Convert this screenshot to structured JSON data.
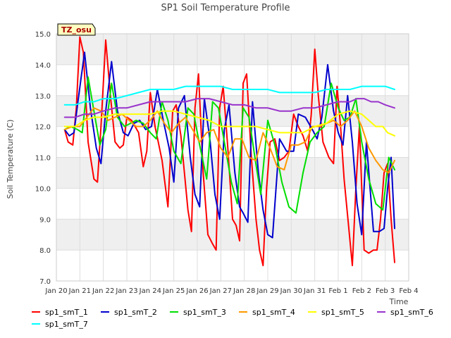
{
  "chart_data": {
    "type": "line",
    "title": "SP1 Soil Temperature Profile",
    "xlabel": "Time",
    "ylabel": "Soil Temperature (C)",
    "badge": "TZ_osu",
    "ylim": [
      7.0,
      15.0
    ],
    "xlim": [
      0,
      15
    ],
    "grid": true,
    "legend_position": "bottom",
    "y_ticks": [
      "7.0",
      "8.0",
      "9.0",
      "10.0",
      "11.0",
      "12.0",
      "13.0",
      "14.0",
      "15.0"
    ],
    "x_ticks": [
      "Jan 20",
      "Jan 21",
      "Jan 22",
      "Jan 23",
      "Jan 24",
      "Jan 25",
      "Jan 26",
      "Jan 27",
      "Jan 28",
      "Jan 29",
      "Jan 30",
      "Jan 31",
      "Feb 1",
      "Feb 2",
      "Feb 3",
      "Feb 4"
    ],
    "x_tick_positions": [
      0,
      1,
      2,
      3,
      4,
      5,
      6,
      7,
      8,
      9,
      10,
      11,
      12,
      13,
      14,
      15
    ],
    "series": [
      {
        "name": "sp1_smT_1",
        "color": "#ff0000",
        "x": [
          0.35,
          0.5,
          0.7,
          0.85,
          1.0,
          1.15,
          1.35,
          1.6,
          1.75,
          1.9,
          2.1,
          2.3,
          2.5,
          2.7,
          2.85,
          3.0,
          3.2,
          3.5,
          3.7,
          3.85,
          4.0,
          4.2,
          4.5,
          4.75,
          4.95,
          5.1,
          5.3,
          5.45,
          5.6,
          5.75,
          5.9,
          6.05,
          6.25,
          6.45,
          6.65,
          6.8,
          6.95,
          7.1,
          7.3,
          7.5,
          7.65,
          7.8,
          7.95,
          8.1,
          8.3,
          8.5,
          8.65,
          8.8,
          8.95,
          9.1,
          9.3,
          9.5,
          9.7,
          9.9,
          10.1,
          10.3,
          10.5,
          10.7,
          10.85,
          11.0,
          11.15,
          11.35,
          11.6,
          11.8,
          11.95,
          12.1,
          12.25,
          12.45,
          12.6,
          12.75,
          12.9,
          13.1,
          13.3,
          13.5,
          13.65,
          13.8,
          13.95,
          14.1,
          14.25,
          14.4
        ],
        "y": [
          11.9,
          11.5,
          11.4,
          12.6,
          14.9,
          14.4,
          11.5,
          10.3,
          10.2,
          12.0,
          14.8,
          13.0,
          11.5,
          11.3,
          11.4,
          12.3,
          12.2,
          11.8,
          10.7,
          11.2,
          13.1,
          12.0,
          10.9,
          9.4,
          12.5,
          12.7,
          11.7,
          10.5,
          9.3,
          8.6,
          12.6,
          13.7,
          10.5,
          8.5,
          8.2,
          8.0,
          12.6,
          13.3,
          11.3,
          9.0,
          8.8,
          8.3,
          13.4,
          13.7,
          11.0,
          9.0,
          8.0,
          7.5,
          10.0,
          11.5,
          11.6,
          10.9,
          11.0,
          11.2,
          12.4,
          12.0,
          11.7,
          11.2,
          12.4,
          14.5,
          13.0,
          11.5,
          11.0,
          10.8,
          13.3,
          12.0,
          10.3,
          8.7,
          7.5,
          10.0,
          12.0,
          8.0,
          7.9,
          8.0,
          8.0,
          9.0,
          10.5,
          10.8,
          9.0,
          7.6
        ]
      },
      {
        "name": "sp1_smT_2",
        "color": "#0000cc",
        "x": [
          0.35,
          0.55,
          0.75,
          0.95,
          1.2,
          1.45,
          1.7,
          1.9,
          2.1,
          2.35,
          2.6,
          2.85,
          3.05,
          3.3,
          3.55,
          3.8,
          4.05,
          4.3,
          4.55,
          4.8,
          5.0,
          5.2,
          5.45,
          5.7,
          5.9,
          6.1,
          6.3,
          6.55,
          6.75,
          6.95,
          7.15,
          7.35,
          7.6,
          7.8,
          7.95,
          8.15,
          8.35,
          8.6,
          8.8,
          9.0,
          9.2,
          9.5,
          9.8,
          10.1,
          10.3,
          10.6,
          10.9,
          11.1,
          11.3,
          11.55,
          11.8,
          12.0,
          12.2,
          12.4,
          12.6,
          12.8,
          13.0,
          13.2,
          13.5,
          13.75,
          13.95,
          14.1,
          14.25,
          14.4
        ],
        "y": [
          11.9,
          11.7,
          11.8,
          13.0,
          14.4,
          12.6,
          11.3,
          10.8,
          12.5,
          14.1,
          12.5,
          11.8,
          11.7,
          12.1,
          12.2,
          11.9,
          12.0,
          13.2,
          12.2,
          11.3,
          10.2,
          12.6,
          13.0,
          11.0,
          9.8,
          9.4,
          12.9,
          11.5,
          9.8,
          9.0,
          11.9,
          12.7,
          10.5,
          9.4,
          9.2,
          8.9,
          12.8,
          10.5,
          9.3,
          8.5,
          8.4,
          11.6,
          11.2,
          11.2,
          12.4,
          12.3,
          11.9,
          11.6,
          12.3,
          14.0,
          12.5,
          11.8,
          11.4,
          13.0,
          11.5,
          9.5,
          8.5,
          11.5,
          8.6,
          8.6,
          8.7,
          10.0,
          11.0,
          8.7
        ]
      },
      {
        "name": "sp1_smT_3",
        "color": "#00dd00",
        "x": [
          0.35,
          0.6,
          0.9,
          1.1,
          1.35,
          1.6,
          1.85,
          2.1,
          2.35,
          2.6,
          2.9,
          3.15,
          3.4,
          3.7,
          4.0,
          4.25,
          4.5,
          4.75,
          5.0,
          5.3,
          5.6,
          5.85,
          6.1,
          6.4,
          6.65,
          6.9,
          7.15,
          7.45,
          7.7,
          7.95,
          8.2,
          8.45,
          8.7,
          9.0,
          9.3,
          9.6,
          9.9,
          10.2,
          10.5,
          10.8,
          11.1,
          11.4,
          11.7,
          12.0,
          12.25,
          12.5,
          12.75,
          13.0,
          13.3,
          13.6,
          13.9,
          14.15,
          14.4
        ],
        "y": [
          11.9,
          12.0,
          11.9,
          11.8,
          13.6,
          12.5,
          11.4,
          11.9,
          13.4,
          12.3,
          12.0,
          12.1,
          12.2,
          12.1,
          11.8,
          11.6,
          12.8,
          12.2,
          11.2,
          10.8,
          12.6,
          12.4,
          11.4,
          10.3,
          12.8,
          12.6,
          11.5,
          10.2,
          9.5,
          12.6,
          12.3,
          11.0,
          9.8,
          12.2,
          11.4,
          10.2,
          9.4,
          9.2,
          10.5,
          11.5,
          11.8,
          12.0,
          13.4,
          12.6,
          12.2,
          12.3,
          12.9,
          11.5,
          10.3,
          9.5,
          9.3,
          11.0,
          10.6
        ]
      },
      {
        "name": "sp1_smT_4",
        "color": "#ff9900",
        "x": [
          0.35,
          0.7,
          1.0,
          1.3,
          1.6,
          1.9,
          2.2,
          2.5,
          2.8,
          3.1,
          3.4,
          3.7,
          4.0,
          4.3,
          4.6,
          4.9,
          5.2,
          5.5,
          5.8,
          6.1,
          6.4,
          6.7,
          7.0,
          7.3,
          7.6,
          7.9,
          8.2,
          8.5,
          8.8,
          9.1,
          9.4,
          9.7,
          10.0,
          10.3,
          10.6,
          10.9,
          11.2,
          11.5,
          11.8,
          12.1,
          12.4,
          12.7,
          13.0,
          13.3,
          13.6,
          13.9,
          14.15,
          14.4
        ],
        "y": [
          11.9,
          12.0,
          12.0,
          12.3,
          12.6,
          12.5,
          12.2,
          12.3,
          12.4,
          12.2,
          12.0,
          12.0,
          12.2,
          12.5,
          12.1,
          11.8,
          12.1,
          12.3,
          11.9,
          11.5,
          11.8,
          11.9,
          11.3,
          11.0,
          11.6,
          11.6,
          11.0,
          10.9,
          11.8,
          11.3,
          10.7,
          10.6,
          11.4,
          11.4,
          11.5,
          12.0,
          12.0,
          12.1,
          12.2,
          12.0,
          12.2,
          12.5,
          12.0,
          11.3,
          10.9,
          10.6,
          10.5,
          10.9
        ]
      },
      {
        "name": "sp1_smT_5",
        "color": "#ffff00",
        "x": [
          0.35,
          0.8,
          1.2,
          1.6,
          2.0,
          2.5,
          3.0,
          3.5,
          4.0,
          4.5,
          5.0,
          5.5,
          6.0,
          6.5,
          7.0,
          7.5,
          8.0,
          8.5,
          9.0,
          9.5,
          10.0,
          10.5,
          11.0,
          11.5,
          12.0,
          12.5,
          13.0,
          13.3,
          13.6,
          13.9,
          14.1,
          14.4
        ],
        "y": [
          12.0,
          12.0,
          12.2,
          12.3,
          12.3,
          12.4,
          12.4,
          12.4,
          12.4,
          12.5,
          12.5,
          12.4,
          12.3,
          12.2,
          12.0,
          12.0,
          12.0,
          12.0,
          11.9,
          11.8,
          11.8,
          11.8,
          12.0,
          12.1,
          12.4,
          12.5,
          12.4,
          12.2,
          12.0,
          12.0,
          11.8,
          11.7
        ]
      },
      {
        "name": "sp1_smT_6",
        "color": "#9933cc",
        "x": [
          0.35,
          0.8,
          1.2,
          1.6,
          2.0,
          2.5,
          3.0,
          3.5,
          4.0,
          4.5,
          5.0,
          5.5,
          6.0,
          6.5,
          7.0,
          7.5,
          8.0,
          8.5,
          9.0,
          9.5,
          10.0,
          10.5,
          11.0,
          11.5,
          12.0,
          12.5,
          12.8,
          13.1,
          13.4,
          13.7,
          14.0,
          14.4
        ],
        "y": [
          12.3,
          12.3,
          12.4,
          12.4,
          12.5,
          12.6,
          12.6,
          12.7,
          12.8,
          12.8,
          12.8,
          12.8,
          12.9,
          12.9,
          12.8,
          12.7,
          12.7,
          12.6,
          12.6,
          12.5,
          12.5,
          12.6,
          12.6,
          12.7,
          12.8,
          12.8,
          12.9,
          12.9,
          12.8,
          12.8,
          12.7,
          12.6
        ]
      },
      {
        "name": "sp1_smT_7",
        "color": "#00ffff",
        "x": [
          0.35,
          0.8,
          1.2,
          1.6,
          2.0,
          2.5,
          3.0,
          3.5,
          4.0,
          4.5,
          5.0,
          5.5,
          6.0,
          6.5,
          7.0,
          7.5,
          8.0,
          8.5,
          9.0,
          9.5,
          10.0,
          10.5,
          11.0,
          11.5,
          12.0,
          12.5,
          13.0,
          13.5,
          14.0,
          14.4
        ],
        "y": [
          12.7,
          12.7,
          12.8,
          12.8,
          12.9,
          12.9,
          13.0,
          13.1,
          13.2,
          13.2,
          13.2,
          13.3,
          13.3,
          13.3,
          13.3,
          13.2,
          13.2,
          13.2,
          13.2,
          13.1,
          13.1,
          13.1,
          13.1,
          13.2,
          13.2,
          13.2,
          13.3,
          13.3,
          13.3,
          13.2
        ]
      }
    ]
  }
}
